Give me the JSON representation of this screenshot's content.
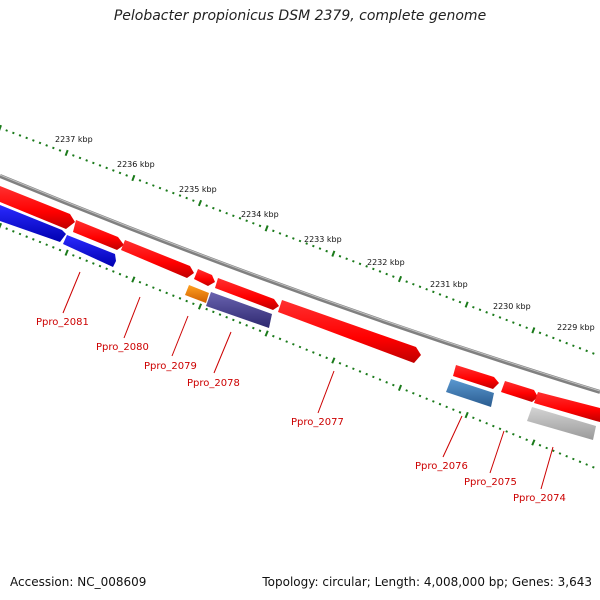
{
  "title": "Pelobacter propionicus DSM 2379, complete genome",
  "footer": {
    "accession": "Accession: NC_008609",
    "summary": "Topology: circular; Length: 4,008,000 bp; Genes: 3,643"
  },
  "ruler": {
    "labels": [
      "2237 kbp",
      "2236 kbp",
      "2235 kbp",
      "2234 kbp",
      "2233 kbp",
      "2232 kbp",
      "2231 kbp",
      "2230 kbp",
      "2229 kbp"
    ]
  },
  "genes": [
    {
      "id": "Ppro_2081",
      "color": "#1010e0"
    },
    {
      "id": "Ppro_2080",
      "color": "#ff1010"
    },
    {
      "id": "Ppro_2079",
      "color": "#f08000"
    },
    {
      "id": "Ppro_2078",
      "color": "#403a8c"
    },
    {
      "id": "Ppro_2077",
      "color": "#ff1010"
    },
    {
      "id": "Ppro_2076",
      "color": "#3a78b8"
    },
    {
      "id": "Ppro_2075",
      "color": "#ff1010"
    },
    {
      "id": "Ppro_2074",
      "color": "#b8b8b8"
    }
  ],
  "colors": {
    "forward_strand": "#ff1010",
    "backbone": "#808080",
    "ticks": "#1a7a1a",
    "label": "#cc0000"
  }
}
